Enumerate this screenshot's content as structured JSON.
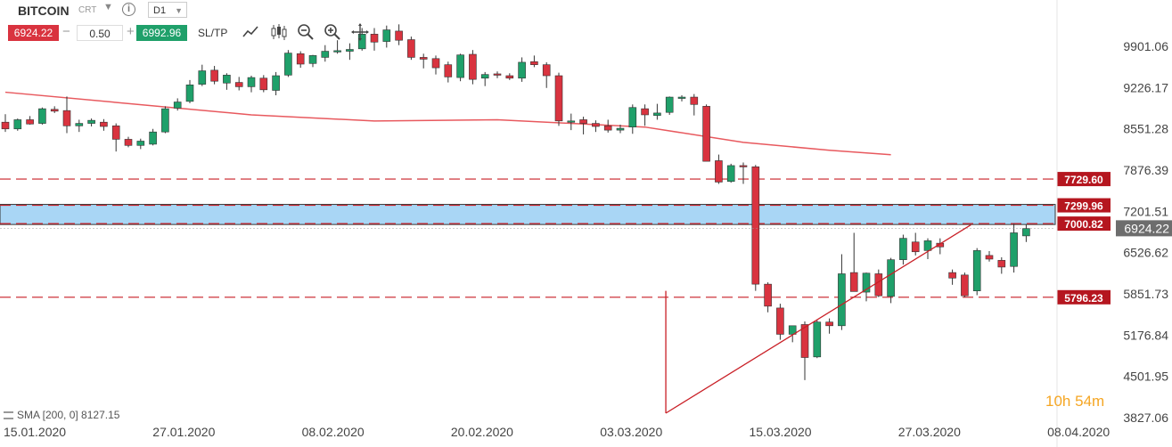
{
  "toolbar": {
    "symbol": "BITCOIN",
    "symbol_type": "CRT",
    "info_icon": "info-icon",
    "timeframe": "D1",
    "sell_price": "6924.22",
    "quantity": "0.50",
    "buy_price": "6992.96",
    "sltp_label": "SL/TP",
    "tools": [
      "line-chart-icon",
      "candles-icon",
      "zoom-out-icon",
      "zoom-in-icon",
      "crosshair-icon"
    ]
  },
  "indicator": {
    "label": "SMA [200, 0] 8127.15",
    "icon": "indicator-icon"
  },
  "timer": {
    "hours": "10h",
    "minutes": "54m"
  },
  "colors": {
    "bull": "#1fa06a",
    "bear": "#d9333f",
    "sma": "#e8595e",
    "zone": "#a9d6f5",
    "level": "#c91f26"
  },
  "chart_data": {
    "type": "candlestick",
    "timeframe": "D1",
    "ylim": [
      3827.06,
      10100
    ],
    "y_ticks": [
      "9901.06",
      "9226.17",
      "8551.28",
      "7876.39",
      "7201.51",
      "6526.62",
      "5851.73",
      "5176.84",
      "4501.95",
      "3827.06"
    ],
    "x_ticks": [
      "15.01.2020",
      "27.01.2020",
      "08.02.2020",
      "20.02.2020",
      "03.03.2020",
      "15.03.2020",
      "27.03.2020",
      "08.04.2020"
    ],
    "current_price": "6924.22",
    "levels": [
      {
        "label": "7729.60",
        "value": 7729.6
      },
      {
        "label": "7299.96",
        "value": 7299.96
      },
      {
        "label": "7000.82",
        "value": 7000.82
      },
      {
        "label": "5796.23",
        "value": 5796.23
      }
    ],
    "zone": {
      "high": 7299.96,
      "low": 7000.82
    },
    "sma": {
      "name": "SMA [200, 0]",
      "values": [
        [
          0,
          9150
        ],
        [
          20,
          8780
        ],
        [
          30,
          8680
        ],
        [
          40,
          8700
        ],
        [
          52,
          8580
        ],
        [
          60,
          8330
        ],
        [
          67,
          8200
        ],
        [
          72,
          8127
        ]
      ]
    },
    "trendline": [
      [
        53.7,
        3900
      ],
      [
        78.5,
        6980
      ]
    ],
    "candles": [
      [
        8660,
        8790,
        8500,
        8550
      ],
      [
        8550,
        8720,
        8520,
        8700
      ],
      [
        8700,
        8760,
        8620,
        8630
      ],
      [
        8640,
        8900,
        8620,
        8880
      ],
      [
        8870,
        8920,
        8810,
        8840
      ],
      [
        8850,
        9080,
        8480,
        8600
      ],
      [
        8600,
        8700,
        8500,
        8640
      ],
      [
        8640,
        8720,
        8590,
        8690
      ],
      [
        8660,
        8710,
        8520,
        8590
      ],
      [
        8600,
        8640,
        8180,
        8380
      ],
      [
        8380,
        8420,
        8250,
        8280
      ],
      [
        8280,
        8390,
        8220,
        8350
      ],
      [
        8300,
        8550,
        8280,
        8500
      ],
      [
        8500,
        8920,
        8480,
        8880
      ],
      [
        8890,
        9050,
        8850,
        8990
      ],
      [
        9000,
        9350,
        8970,
        9270
      ],
      [
        9280,
        9600,
        9250,
        9500
      ],
      [
        9510,
        9580,
        9280,
        9330
      ],
      [
        9300,
        9460,
        9190,
        9430
      ],
      [
        9310,
        9400,
        9180,
        9240
      ],
      [
        9240,
        9420,
        9150,
        9390
      ],
      [
        9380,
        9430,
        9150,
        9190
      ],
      [
        9180,
        9480,
        9100,
        9420
      ],
      [
        9430,
        9840,
        9400,
        9790
      ],
      [
        9780,
        9820,
        9550,
        9610
      ],
      [
        9620,
        9760,
        9560,
        9750
      ],
      [
        9720,
        9920,
        9650,
        9820
      ],
      [
        9830,
        10000,
        9780,
        9830
      ],
      [
        9820,
        9950,
        9680,
        9850
      ],
      [
        9860,
        10200,
        9830,
        10100
      ],
      [
        10100,
        10200,
        9830,
        9970
      ],
      [
        9980,
        10240,
        9880,
        10170
      ],
      [
        10150,
        10260,
        9920,
        10000
      ],
      [
        10010,
        10060,
        9680,
        9720
      ],
      [
        9720,
        9780,
        9540,
        9690
      ],
      [
        9700,
        9750,
        9440,
        9550
      ],
      [
        9600,
        9650,
        9310,
        9400
      ],
      [
        9390,
        9780,
        9330,
        9760
      ],
      [
        9770,
        9840,
        9280,
        9360
      ],
      [
        9380,
        9480,
        9250,
        9440
      ],
      [
        9450,
        9490,
        9380,
        9430
      ],
      [
        9420,
        9460,
        9350,
        9380
      ],
      [
        9380,
        9720,
        9320,
        9640
      ],
      [
        9650,
        9750,
        9560,
        9600
      ],
      [
        9600,
        9640,
        9220,
        9420
      ],
      [
        9420,
        9470,
        8600,
        8680
      ],
      [
        8670,
        8800,
        8530,
        8680
      ],
      [
        8700,
        8750,
        8460,
        8640
      ],
      [
        8640,
        8690,
        8500,
        8590
      ],
      [
        8600,
        8700,
        8490,
        8530
      ],
      [
        8530,
        8620,
        8480,
        8560
      ],
      [
        8580,
        8950,
        8470,
        8900
      ],
      [
        8880,
        8950,
        8600,
        8780
      ],
      [
        8770,
        8960,
        8700,
        8810
      ],
      [
        8820,
        9080,
        8780,
        9070
      ],
      [
        9070,
        9100,
        9000,
        9070
      ],
      [
        9070,
        9120,
        8770,
        8950
      ],
      [
        8920,
        8950,
        8050,
        8020
      ],
      [
        8030,
        8130,
        7650,
        7680
      ],
      [
        7690,
        7980,
        7670,
        7950
      ],
      [
        7950,
        8000,
        7650,
        7930
      ],
      [
        7930,
        7960,
        5900,
        6010
      ],
      [
        6010,
        6040,
        5550,
        5650
      ],
      [
        5620,
        5690,
        5100,
        5190
      ],
      [
        5190,
        5290,
        5060,
        5330
      ],
      [
        5350,
        5400,
        4440,
        4810
      ],
      [
        4820,
        5420,
        4800,
        5390
      ],
      [
        5390,
        5450,
        5200,
        5330
      ],
      [
        5330,
        6500,
        5260,
        6180
      ],
      [
        6200,
        6850,
        5900,
        5890
      ],
      [
        5880,
        6200,
        5730,
        6190
      ],
      [
        6180,
        6250,
        5800,
        5820
      ],
      [
        5810,
        6440,
        5700,
        6410
      ],
      [
        6410,
        6820,
        6330,
        6760
      ],
      [
        6700,
        6850,
        6480,
        6540
      ],
      [
        6560,
        6760,
        6420,
        6720
      ],
      [
        6680,
        6760,
        6500,
        6620
      ],
      [
        6200,
        6250,
        6000,
        6110
      ],
      [
        6160,
        6200,
        5800,
        5820
      ],
      [
        5900,
        6600,
        5830,
        6560
      ],
      [
        6480,
        6550,
        6380,
        6420
      ],
      [
        6400,
        6450,
        6180,
        6290
      ],
      [
        6300,
        7000,
        6200,
        6850
      ],
      [
        6800,
        6990,
        6700,
        6920
      ]
    ]
  }
}
